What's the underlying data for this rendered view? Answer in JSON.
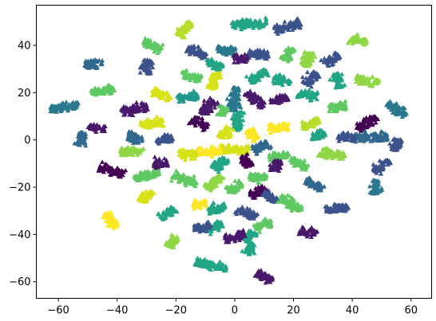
{
  "chart_data": {
    "type": "scatter",
    "title": "",
    "xlabel": "",
    "ylabel": "",
    "xlim": [
      -67.5,
      67
    ],
    "ylim": [
      -67,
      57
    ],
    "xticks": [
      -60,
      -40,
      -20,
      0,
      20,
      40,
      60
    ],
    "yticks": [
      -60,
      -40,
      -20,
      0,
      20,
      40
    ],
    "xtick_labels": [
      "−60",
      "−40",
      "−20",
      "0",
      "20",
      "40",
      "60"
    ],
    "ytick_labels": [
      "−60",
      "−40",
      "−20",
      "0",
      "20",
      "40"
    ],
    "marker": "triangle",
    "colormap": "viridis",
    "grid": false,
    "clusters": [
      {
        "x": 5,
        "y": 49,
        "angle": 5,
        "len": 12,
        "color": "#21a585"
      },
      {
        "x": 18,
        "y": 48,
        "angle": 20,
        "len": 9,
        "color": "#3b528b"
      },
      {
        "x": -17,
        "y": 47,
        "angle": 55,
        "len": 7,
        "color": "#b5de2b"
      },
      {
        "x": 42,
        "y": 42,
        "angle": -15,
        "len": 6,
        "color": "#8fd744"
      },
      {
        "x": -28,
        "y": 40,
        "angle": -25,
        "len": 7,
        "color": "#5ec962"
      },
      {
        "x": -3,
        "y": 38,
        "angle": -15,
        "len": 6,
        "color": "#2a788e"
      },
      {
        "x": 8,
        "y": 36,
        "angle": 0,
        "len": 7,
        "color": "#3b528b"
      },
      {
        "x": 2,
        "y": 34,
        "angle": 0,
        "len": 5,
        "color": "#48186a"
      },
      {
        "x": -13,
        "y": 37,
        "angle": -30,
        "len": 7,
        "color": "#3b528b"
      },
      {
        "x": 18,
        "y": 36,
        "angle": 70,
        "len": 6,
        "color": "#5ec962"
      },
      {
        "x": 25,
        "y": 34,
        "angle": 80,
        "len": 6,
        "color": "#8fd744"
      },
      {
        "x": 33,
        "y": 34,
        "angle": 45,
        "len": 6,
        "color": "#3b528b"
      },
      {
        "x": -48,
        "y": 32,
        "angle": 0,
        "len": 6,
        "color": "#31688e"
      },
      {
        "x": -30,
        "y": 31,
        "angle": 80,
        "len": 6,
        "color": "#3b528b"
      },
      {
        "x": -7,
        "y": 32,
        "angle": -35,
        "len": 6,
        "color": "#21a585"
      },
      {
        "x": -15,
        "y": 27,
        "angle": -20,
        "len": 7,
        "color": "#5ec962"
      },
      {
        "x": -7,
        "y": 25,
        "angle": 75,
        "len": 7,
        "color": "#d8e219"
      },
      {
        "x": 8,
        "y": 27,
        "angle": 35,
        "len": 7,
        "color": "#21a585"
      },
      {
        "x": 16,
        "y": 25,
        "angle": -30,
        "len": 6,
        "color": "#21a585"
      },
      {
        "x": 26,
        "y": 26,
        "angle": 55,
        "len": 6,
        "color": "#3b528b"
      },
      {
        "x": 35,
        "y": 25,
        "angle": -70,
        "len": 6,
        "color": "#21a585"
      },
      {
        "x": 45,
        "y": 25,
        "angle": -20,
        "len": 8,
        "color": "#8fd744"
      },
      {
        "x": -45,
        "y": 21,
        "angle": 15,
        "len": 8,
        "color": "#5ec962"
      },
      {
        "x": -25,
        "y": 19,
        "angle": -25,
        "len": 7,
        "color": "#d8e219"
      },
      {
        "x": -16,
        "y": 18,
        "angle": 10,
        "len": 7,
        "color": "#1f988b"
      },
      {
        "x": 0,
        "y": 17,
        "angle": 85,
        "len": 10,
        "color": "#2a788e"
      },
      {
        "x": -9,
        "y": 14,
        "angle": 55,
        "len": 7,
        "color": "#48186a"
      },
      {
        "x": 7,
        "y": 17,
        "angle": -50,
        "len": 8,
        "color": "#48186a"
      },
      {
        "x": 15,
        "y": 17,
        "angle": 25,
        "len": 6,
        "color": "#48186a"
      },
      {
        "x": 25,
        "y": 19,
        "angle": -10,
        "len": 7,
        "color": "#21a585"
      },
      {
        "x": 35,
        "y": 14,
        "angle": 5,
        "len": 6,
        "color": "#5ec962"
      },
      {
        "x": -58,
        "y": 14,
        "angle": 15,
        "len": 10,
        "color": "#2a788e"
      },
      {
        "x": -34,
        "y": 13,
        "angle": 15,
        "len": 9,
        "color": "#48186a"
      },
      {
        "x": -28,
        "y": 7,
        "angle": 5,
        "len": 8,
        "color": "#d8e219"
      },
      {
        "x": 55,
        "y": 13,
        "angle": -35,
        "len": 8,
        "color": "#2a788e"
      },
      {
        "x": 26,
        "y": 7,
        "angle": 30,
        "len": 7,
        "color": "#b5de2b"
      },
      {
        "x": 15,
        "y": 5,
        "angle": 0,
        "len": 7,
        "color": "#fde725"
      },
      {
        "x": -47,
        "y": 5,
        "angle": -10,
        "len": 6,
        "color": "#48186a"
      },
      {
        "x": -12,
        "y": 7,
        "angle": -30,
        "len": 6,
        "color": "#440154"
      },
      {
        "x": 45,
        "y": 7,
        "angle": 45,
        "len": 8,
        "color": "#440154"
      },
      {
        "x": 46,
        "y": 1,
        "angle": 0,
        "len": 12,
        "color": "#31688e"
      },
      {
        "x": 38,
        "y": 1,
        "angle": 0,
        "len": 6,
        "color": "#3b528b"
      },
      {
        "x": 28,
        "y": 2,
        "angle": 45,
        "len": 5,
        "color": "#21a585"
      },
      {
        "x": -52,
        "y": 0,
        "angle": 70,
        "len": 6,
        "color": "#31688e"
      },
      {
        "x": -34,
        "y": 1,
        "angle": -25,
        "len": 6,
        "color": "#31688e"
      },
      {
        "x": -24,
        "y": 0,
        "angle": 20,
        "len": 6,
        "color": "#3b528b"
      },
      {
        "x": -35,
        "y": -5,
        "angle": 0,
        "len": 8,
        "color": "#8fd744"
      },
      {
        "x": 55,
        "y": -2,
        "angle": 70,
        "len": 5,
        "color": "#3b528b"
      },
      {
        "x": 33,
        "y": -6,
        "angle": -10,
        "len": 9,
        "color": "#8fd744"
      },
      {
        "x": 15,
        "y": -7,
        "angle": 20,
        "len": 7,
        "color": "#5ec962"
      },
      {
        "x": 22,
        "y": -10,
        "angle": -30,
        "len": 7,
        "color": "#5ec962"
      },
      {
        "x": 50,
        "y": -11,
        "angle": 40,
        "len": 7,
        "color": "#3b528b"
      },
      {
        "x": -42,
        "y": -13,
        "angle": -25,
        "len": 9,
        "color": "#440154"
      },
      {
        "x": -25,
        "y": -10,
        "angle": 0,
        "len": 5,
        "color": "#48186a"
      },
      {
        "x": -30,
        "y": -15,
        "angle": 10,
        "len": 9,
        "color": "#5ec962"
      },
      {
        "x": -17,
        "y": -17,
        "angle": -25,
        "len": 9,
        "color": "#5ec962"
      },
      {
        "x": 8,
        "y": -16,
        "angle": 0,
        "len": 6,
        "color": "#5ec962"
      },
      {
        "x": 14,
        "y": -11,
        "angle": 70,
        "len": 5,
        "color": "#48186a"
      },
      {
        "x": -7,
        "y": -18,
        "angle": 55,
        "len": 7,
        "color": "#8fd744"
      },
      {
        "x": 0,
        "y": -20,
        "angle": 40,
        "len": 6,
        "color": "#5ec962"
      },
      {
        "x": 27,
        "y": -19,
        "angle": -35,
        "len": 7,
        "color": "#31688e"
      },
      {
        "x": 8,
        "y": -22,
        "angle": 40,
        "len": 6,
        "color": "#440154"
      },
      {
        "x": 48,
        "y": -20,
        "angle": 80,
        "len": 6,
        "color": "#2a788e"
      },
      {
        "x": -30,
        "y": -24,
        "angle": 45,
        "len": 6,
        "color": "#d8e219"
      },
      {
        "x": 12,
        "y": -24,
        "angle": -45,
        "len": 6,
        "color": "#3b528b"
      },
      {
        "x": -12,
        "y": -27,
        "angle": 20,
        "len": 5,
        "color": "#fde725"
      },
      {
        "x": 19,
        "y": -27,
        "angle": -40,
        "len": 9,
        "color": "#5ec962"
      },
      {
        "x": -6,
        "y": -29,
        "angle": 15,
        "len": 6,
        "color": "#21a585"
      },
      {
        "x": 35,
        "y": -29,
        "angle": 10,
        "len": 8,
        "color": "#3b528b"
      },
      {
        "x": -42,
        "y": -34,
        "angle": -60,
        "len": 7,
        "color": "#fde725"
      },
      {
        "x": 4,
        "y": -31,
        "angle": -30,
        "len": 7,
        "color": "#3b528b"
      },
      {
        "x": -23,
        "y": -31,
        "angle": 40,
        "len": 6,
        "color": "#21a585"
      },
      {
        "x": -7,
        "y": -37,
        "angle": 20,
        "len": 6,
        "color": "#21a585"
      },
      {
        "x": -11,
        "y": -37,
        "angle": 10,
        "len": 6,
        "color": "#3b528b"
      },
      {
        "x": 10,
        "y": -36,
        "angle": 30,
        "len": 6,
        "color": "#5ec962"
      },
      {
        "x": 5,
        "y": -41,
        "angle": 50,
        "len": 5,
        "color": "#21a585"
      },
      {
        "x": 25,
        "y": -39,
        "angle": -10,
        "len": 6,
        "color": "#48186a"
      },
      {
        "x": -21,
        "y": -43,
        "angle": 60,
        "len": 5,
        "color": "#8fd744"
      },
      {
        "x": 0,
        "y": -41,
        "angle": 15,
        "len": 7,
        "color": "#48186a"
      },
      {
        "x": 5,
        "y": -46,
        "angle": 70,
        "len": 5,
        "color": "#21a585"
      },
      {
        "x": -8,
        "y": -53,
        "angle": -15,
        "len": 11,
        "color": "#21a585"
      },
      {
        "x": 10,
        "y": -58,
        "angle": -25,
        "len": 6,
        "color": "#48186a"
      },
      {
        "x": 1,
        "y": 8,
        "angle": 90,
        "len": 8,
        "color": "#21a585"
      },
      {
        "x": -3,
        "y": 3,
        "angle": 60,
        "len": 5,
        "color": "#d8e219"
      },
      {
        "x": 6,
        "y": 2,
        "angle": -60,
        "len": 5,
        "color": "#fde725"
      },
      {
        "x": 0,
        "y": -4,
        "angle": 0,
        "len": 10,
        "color": "#d8e219"
      },
      {
        "x": -9,
        "y": -5,
        "angle": 10,
        "len": 9,
        "color": "#fde725"
      },
      {
        "x": 9,
        "y": -3,
        "angle": 30,
        "len": 6,
        "color": "#31688e"
      },
      {
        "x": -5,
        "y": -10,
        "angle": 45,
        "len": 6,
        "color": "#21a585"
      },
      {
        "x": 4,
        "y": -9,
        "angle": -60,
        "len": 5,
        "color": "#440154"
      },
      {
        "x": -16,
        "y": -6,
        "angle": 0,
        "len": 6,
        "color": "#d8e219"
      },
      {
        "x": -4,
        "y": 12,
        "angle": 70,
        "len": 4,
        "color": "#5ec962"
      }
    ]
  }
}
